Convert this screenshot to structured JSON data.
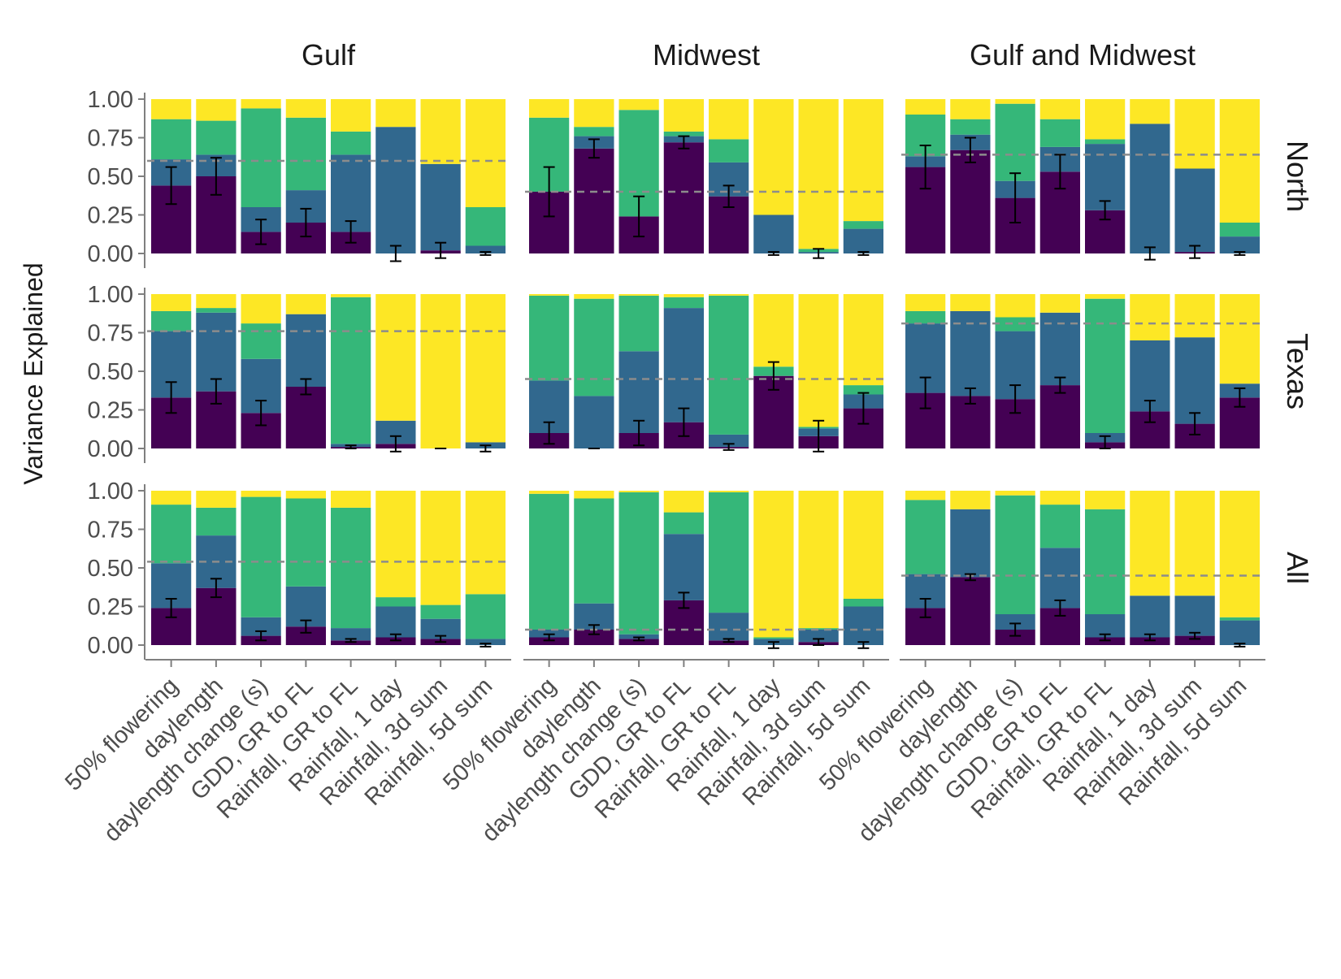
{
  "chart_data": {
    "type": "bar",
    "stacked": true,
    "title": "",
    "ylabel": "Variance Explained",
    "xlabel": "",
    "ylim": [
      0,
      1
    ],
    "yticks": [
      "0.00",
      "0.25",
      "0.50",
      "0.75",
      "1.00"
    ],
    "categories": [
      "50% flowering",
      "daylength",
      "daylength change (s)",
      "GDD, GR to FL",
      "Rainfall, GR to FL",
      "Rainfall, 1 day",
      "Rainfall, 3d sum",
      "Rainfall, 5d sum"
    ],
    "column_facets": [
      "Gulf",
      "Midwest",
      "Gulf and Midwest"
    ],
    "row_facets": [
      "North",
      "Texas",
      "All"
    ],
    "stack_colors": [
      "#440154",
      "#31688e",
      "#35b779",
      "#fde725"
    ],
    "reference_line_color": "#8c8c8c",
    "errorbar_note": "error bars centered on the bottom component",
    "panels": [
      {
        "row": "North",
        "col": "Gulf",
        "ref": 0.6,
        "stacks": [
          [
            0.44,
            0.17,
            0.26,
            0.13
          ],
          [
            0.5,
            0.14,
            0.22,
            0.14
          ],
          [
            0.14,
            0.16,
            0.64,
            0.06
          ],
          [
            0.2,
            0.21,
            0.47,
            0.12
          ],
          [
            0.14,
            0.5,
            0.15,
            0.21
          ],
          [
            0.0,
            0.82,
            0.0,
            0.18
          ],
          [
            0.02,
            0.56,
            0.0,
            0.42
          ],
          [
            0.0,
            0.05,
            0.25,
            0.7
          ]
        ],
        "errors": [
          [
            0.44,
            0.12
          ],
          [
            0.5,
            0.12
          ],
          [
            0.14,
            0.08
          ],
          [
            0.2,
            0.09
          ],
          [
            0.14,
            0.07
          ],
          [
            0.0,
            0.05
          ],
          [
            0.02,
            0.05
          ],
          [
            0.0,
            0.01
          ]
        ]
      },
      {
        "row": "North",
        "col": "Midwest",
        "ref": 0.4,
        "stacks": [
          [
            0.4,
            0.0,
            0.48,
            0.12
          ],
          [
            0.68,
            0.08,
            0.06,
            0.18
          ],
          [
            0.24,
            0.0,
            0.69,
            0.07
          ],
          [
            0.72,
            0.04,
            0.03,
            0.21
          ],
          [
            0.37,
            0.22,
            0.15,
            0.26
          ],
          [
            0.0,
            0.25,
            0.0,
            0.75
          ],
          [
            0.0,
            0.01,
            0.02,
            0.97
          ],
          [
            0.0,
            0.16,
            0.05,
            0.79
          ]
        ],
        "errors": [
          [
            0.4,
            0.16
          ],
          [
            0.68,
            0.06
          ],
          [
            0.24,
            0.13
          ],
          [
            0.72,
            0.04
          ],
          [
            0.37,
            0.07
          ],
          [
            0.0,
            0.01
          ],
          [
            0.0,
            0.03
          ],
          [
            0.0,
            0.01
          ]
        ]
      },
      {
        "row": "North",
        "col": "Gulf and Midwest",
        "ref": 0.64,
        "stacks": [
          [
            0.56,
            0.07,
            0.27,
            0.1
          ],
          [
            0.67,
            0.1,
            0.1,
            0.13
          ],
          [
            0.36,
            0.11,
            0.5,
            0.03
          ],
          [
            0.53,
            0.16,
            0.18,
            0.13
          ],
          [
            0.28,
            0.43,
            0.03,
            0.26
          ],
          [
            0.0,
            0.84,
            0.0,
            0.16
          ],
          [
            0.01,
            0.54,
            0.0,
            0.45
          ],
          [
            0.0,
            0.11,
            0.09,
            0.8
          ]
        ],
        "errors": [
          [
            0.56,
            0.14
          ],
          [
            0.67,
            0.08
          ],
          [
            0.36,
            0.16
          ],
          [
            0.53,
            0.11
          ],
          [
            0.28,
            0.06
          ],
          [
            0.0,
            0.04
          ],
          [
            0.01,
            0.04
          ],
          [
            0.0,
            0.01
          ]
        ]
      },
      {
        "row": "Texas",
        "col": "Gulf",
        "ref": 0.76,
        "stacks": [
          [
            0.33,
            0.43,
            0.13,
            0.11
          ],
          [
            0.37,
            0.51,
            0.03,
            0.09
          ],
          [
            0.23,
            0.35,
            0.23,
            0.19
          ],
          [
            0.4,
            0.47,
            0.0,
            0.13
          ],
          [
            0.01,
            0.02,
            0.95,
            0.02
          ],
          [
            0.03,
            0.15,
            0.0,
            0.82
          ],
          [
            0.0,
            0.0,
            0.0,
            1.0
          ],
          [
            0.0,
            0.04,
            0.0,
            0.96
          ]
        ],
        "errors": [
          [
            0.33,
            0.1
          ],
          [
            0.37,
            0.08
          ],
          [
            0.23,
            0.08
          ],
          [
            0.4,
            0.05
          ],
          [
            0.01,
            0.01
          ],
          [
            0.03,
            0.05
          ],
          [
            0.0,
            0.0
          ],
          [
            0.0,
            0.02
          ]
        ]
      },
      {
        "row": "Texas",
        "col": "Midwest",
        "ref": 0.45,
        "stacks": [
          [
            0.1,
            0.34,
            0.55,
            0.01
          ],
          [
            0.0,
            0.34,
            0.63,
            0.03
          ],
          [
            0.1,
            0.53,
            0.36,
            0.01
          ],
          [
            0.17,
            0.74,
            0.07,
            0.02
          ],
          [
            0.01,
            0.08,
            0.9,
            0.01
          ],
          [
            0.47,
            0.0,
            0.06,
            0.47
          ],
          [
            0.08,
            0.05,
            0.01,
            0.86
          ],
          [
            0.26,
            0.09,
            0.06,
            0.59
          ]
        ],
        "errors": [
          [
            0.1,
            0.07
          ],
          [
            0.0,
            0.0
          ],
          [
            0.1,
            0.08
          ],
          [
            0.17,
            0.09
          ],
          [
            0.01,
            0.02
          ],
          [
            0.47,
            0.09
          ],
          [
            0.08,
            0.1
          ],
          [
            0.26,
            0.1
          ]
        ]
      },
      {
        "row": "Texas",
        "col": "Gulf and Midwest",
        "ref": 0.81,
        "stacks": [
          [
            0.36,
            0.45,
            0.08,
            0.11
          ],
          [
            0.34,
            0.55,
            0.0,
            0.11
          ],
          [
            0.32,
            0.44,
            0.09,
            0.15
          ],
          [
            0.41,
            0.47,
            0.0,
            0.12
          ],
          [
            0.04,
            0.06,
            0.87,
            0.03
          ],
          [
            0.24,
            0.46,
            0.0,
            0.3
          ],
          [
            0.16,
            0.56,
            0.0,
            0.28
          ],
          [
            0.33,
            0.09,
            0.0,
            0.58
          ]
        ],
        "errors": [
          [
            0.36,
            0.1
          ],
          [
            0.34,
            0.05
          ],
          [
            0.32,
            0.09
          ],
          [
            0.41,
            0.05
          ],
          [
            0.04,
            0.04
          ],
          [
            0.24,
            0.07
          ],
          [
            0.16,
            0.07
          ],
          [
            0.33,
            0.06
          ]
        ]
      },
      {
        "row": "All",
        "col": "Gulf",
        "ref": 0.54,
        "stacks": [
          [
            0.24,
            0.29,
            0.38,
            0.09
          ],
          [
            0.37,
            0.34,
            0.18,
            0.11
          ],
          [
            0.06,
            0.12,
            0.78,
            0.04
          ],
          [
            0.12,
            0.26,
            0.57,
            0.05
          ],
          [
            0.03,
            0.08,
            0.78,
            0.11
          ],
          [
            0.05,
            0.2,
            0.06,
            0.69
          ],
          [
            0.04,
            0.13,
            0.09,
            0.74
          ],
          [
            0.0,
            0.04,
            0.29,
            0.67
          ]
        ],
        "errors": [
          [
            0.24,
            0.06
          ],
          [
            0.37,
            0.06
          ],
          [
            0.06,
            0.03
          ],
          [
            0.12,
            0.04
          ],
          [
            0.03,
            0.01
          ],
          [
            0.05,
            0.02
          ],
          [
            0.04,
            0.02
          ],
          [
            0.0,
            0.01
          ]
        ]
      },
      {
        "row": "All",
        "col": "Midwest",
        "ref": 0.1,
        "stacks": [
          [
            0.05,
            0.05,
            0.88,
            0.02
          ],
          [
            0.1,
            0.17,
            0.68,
            0.05
          ],
          [
            0.04,
            0.03,
            0.92,
            0.01
          ],
          [
            0.29,
            0.43,
            0.14,
            0.14
          ],
          [
            0.03,
            0.18,
            0.78,
            0.01
          ],
          [
            0.0,
            0.04,
            0.01,
            0.95
          ],
          [
            0.02,
            0.08,
            0.01,
            0.89
          ],
          [
            0.0,
            0.25,
            0.05,
            0.7
          ]
        ],
        "errors": [
          [
            0.05,
            0.02
          ],
          [
            0.1,
            0.03
          ],
          [
            0.04,
            0.01
          ],
          [
            0.29,
            0.05
          ],
          [
            0.03,
            0.01
          ],
          [
            0.0,
            0.02
          ],
          [
            0.02,
            0.02
          ],
          [
            0.0,
            0.02
          ]
        ]
      },
      {
        "row": "All",
        "col": "Gulf and Midwest",
        "ref": 0.45,
        "stacks": [
          [
            0.24,
            0.22,
            0.48,
            0.06
          ],
          [
            0.44,
            0.44,
            0.0,
            0.12
          ],
          [
            0.1,
            0.1,
            0.77,
            0.03
          ],
          [
            0.24,
            0.39,
            0.28,
            0.09
          ],
          [
            0.05,
            0.15,
            0.68,
            0.12
          ],
          [
            0.05,
            0.27,
            0.0,
            0.68
          ],
          [
            0.06,
            0.26,
            0.0,
            0.68
          ],
          [
            0.0,
            0.16,
            0.02,
            0.82
          ]
        ],
        "errors": [
          [
            0.24,
            0.06
          ],
          [
            0.44,
            0.02
          ],
          [
            0.1,
            0.04
          ],
          [
            0.24,
            0.05
          ],
          [
            0.05,
            0.02
          ],
          [
            0.05,
            0.02
          ],
          [
            0.06,
            0.02
          ],
          [
            0.0,
            0.01
          ]
        ]
      }
    ]
  }
}
